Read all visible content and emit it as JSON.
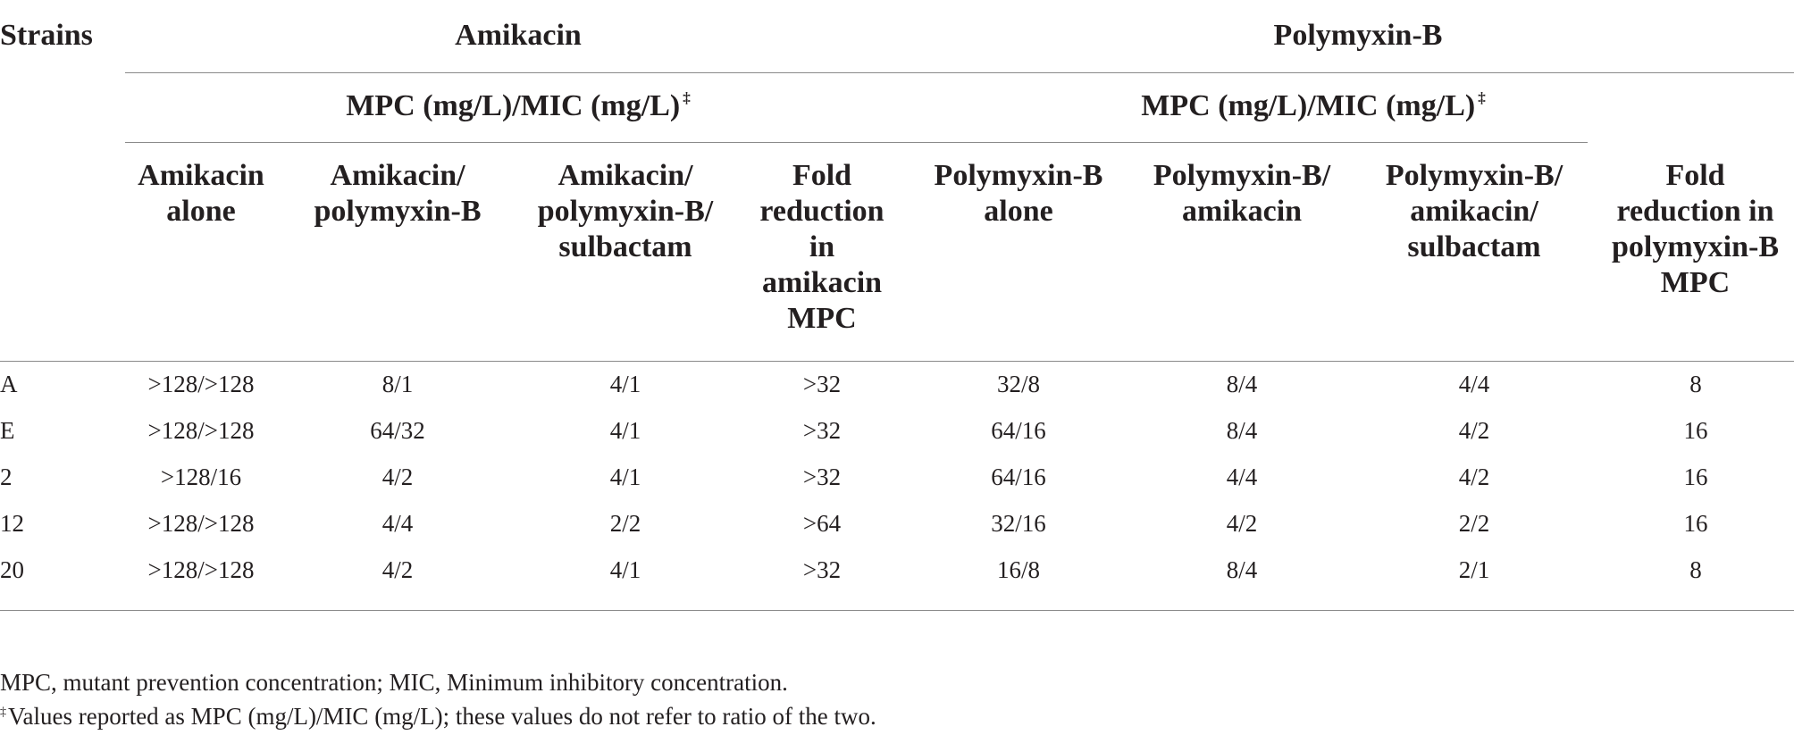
{
  "table": {
    "strains_header": "Strains",
    "group_headers": [
      "Amikacin",
      "Polymyxin-B"
    ],
    "subgroup_headers": [
      "MPC (mg/L)/MIC (mg/L)",
      "MPC (mg/L)/MIC (mg/L)"
    ],
    "subgroup_mark": "‡",
    "columns": [
      [
        "Amikacin",
        "alone"
      ],
      [
        "Amikacin/",
        "polymyxin-B"
      ],
      [
        "Amikacin/",
        "polymyxin-B/",
        "sulbactam"
      ],
      [
        "Fold",
        "reduction",
        "in",
        "amikacin",
        "MPC"
      ],
      [
        "Polymyxin-B",
        "alone"
      ],
      [
        "Polymyxin-B/",
        "amikacin"
      ],
      [
        "Polymyxin-B/",
        "amikacin/",
        "sulbactam"
      ],
      [
        "Fold",
        "reduction in",
        "polymyxin-B",
        "MPC"
      ]
    ],
    "rows": [
      [
        "A",
        ">128/>128",
        "8/1",
        "4/1",
        ">32",
        "32/8",
        "8/4",
        "4/4",
        "8"
      ],
      [
        "E",
        ">128/>128",
        "64/32",
        "4/1",
        ">32",
        "64/16",
        "8/4",
        "4/2",
        "16"
      ],
      [
        "2",
        ">128/16",
        "4/2",
        "4/1",
        ">32",
        "64/16",
        "4/4",
        "4/2",
        "16"
      ],
      [
        "12",
        ">128/>128",
        "4/4",
        "2/2",
        ">64",
        "32/16",
        "4/2",
        "2/2",
        "16"
      ],
      [
        "20",
        ">128/>128",
        "4/2",
        "4/1",
        ">32",
        "16/8",
        "8/4",
        "2/1",
        "8"
      ]
    ]
  },
  "footnotes": {
    "abbreviations": "MPC, mutant prevention concentration; MIC, Minimum inhibitory concentration.",
    "mark": "‡",
    "note": "Values reported as MPC (mg/L)/MIC (mg/L); these values do not refer to ratio of the two."
  }
}
